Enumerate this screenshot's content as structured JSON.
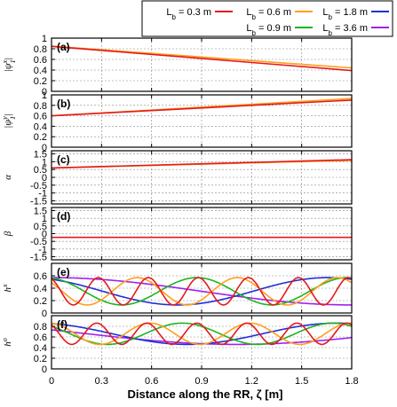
{
  "chart_data": {
    "type": "line",
    "xlabel": "Distance along the RR, ζ [m]",
    "xlim": [
      0,
      1.8
    ],
    "xticks": [
      "0",
      "0.3",
      "0.6",
      "0.9",
      "1.2",
      "1.5",
      "1.8"
    ],
    "legend": {
      "placement": "top",
      "entries": [
        {
          "label": "L_b = 0.3 m",
          "color": "#e41a1c"
        },
        {
          "label": "L_b = 0.6 m",
          "color": "#ff9f1c"
        },
        {
          "label": "L_b = 1.8 m",
          "color": "#1f2fd6"
        },
        {
          "label": "L_b = 0.9 m",
          "color": "#1fb31f"
        },
        {
          "label": "L_b = 3.6 m",
          "color": "#a020f0"
        }
      ]
    },
    "panels": [
      {
        "id": "a",
        "label": "(a)",
        "ylabel": "|ψ_1^x|",
        "ylim": [
          0,
          1
        ],
        "yticks": [
          "0",
          "0.2",
          "0.4",
          "0.6",
          "0.8",
          "1"
        ],
        "series": [
          {
            "color": "#ff9f1c",
            "x": [
              0,
              1.8
            ],
            "y": [
              0.85,
              0.44
            ]
          },
          {
            "color": "#e41a1c",
            "x": [
              0,
              1.8
            ],
            "y": [
              0.845,
              0.39
            ]
          }
        ]
      },
      {
        "id": "b",
        "label": "(b)",
        "ylabel": "|ψ_1^y|",
        "ylim": [
          0,
          1
        ],
        "yticks": [
          "0",
          "0.2",
          "0.4",
          "0.6",
          "0.8",
          "1"
        ],
        "series": [
          {
            "color": "#ff9f1c",
            "x": [
              0,
              1.8
            ],
            "y": [
              0.6,
              0.93
            ]
          },
          {
            "color": "#e41a1c",
            "x": [
              0,
              1.8
            ],
            "y": [
              0.6,
              0.9
            ]
          }
        ]
      },
      {
        "id": "c",
        "label": "(c)",
        "ylabel": "α",
        "ylim": [
          -1.7,
          1.7
        ],
        "yticks": [
          "-1.5",
          "-1",
          "-0.5",
          "0",
          "0.5",
          "1",
          "1.5"
        ],
        "series": [
          {
            "color": "#ff9f1c",
            "x": [
              0,
              1.8
            ],
            "y": [
              0.6,
              1.08
            ]
          },
          {
            "color": "#e41a1c",
            "x": [
              0,
              1.8
            ],
            "y": [
              0.6,
              1.13
            ]
          }
        ]
      },
      {
        "id": "d",
        "label": "(d)",
        "ylabel": "β",
        "ylim": [
          -1.7,
          1.7
        ],
        "yticks": [
          "-1.5",
          "-1",
          "-0.5",
          "0",
          "0.5",
          "1",
          "1.5"
        ],
        "series": [
          {
            "color": "#e41a1c",
            "x": [
              0,
              1.8
            ],
            "y": [
              -0.24,
              -0.24
            ]
          }
        ]
      },
      {
        "id": "e",
        "label": "(e)",
        "ylabel": "h^x",
        "ylim": [
          0,
          0.8
        ],
        "yticks": [
          "0",
          "0.2",
          "0.4",
          "0.6"
        ],
        "osc": {
          "center": 0.35,
          "amplitude": 0.22
        },
        "series": [
          {
            "color": "#a020f0",
            "period": 3.6,
            "phase": 0.0
          },
          {
            "color": "#1f2fd6",
            "period": 1.8,
            "phase": 0.5
          },
          {
            "color": "#1fb31f",
            "period": 0.9,
            "phase": 0.2
          },
          {
            "color": "#ff9f1c",
            "period": 0.6,
            "phase": 0.9
          },
          {
            "color": "#e41a1c",
            "period": 0.3,
            "phase": 0.4
          }
        ]
      },
      {
        "id": "f",
        "label": "(f)",
        "ylabel": "h^o",
        "ylim": [
          0,
          1
        ],
        "yticks": [
          "0",
          "0.2",
          "0.4",
          "0.6",
          "0.8"
        ],
        "osc": {
          "center": 0.66,
          "amplitude": 0.2
        },
        "series": [
          {
            "color": "#a020f0",
            "period": 3.6,
            "phase": 1.2
          },
          {
            "color": "#1f2fd6",
            "period": 1.8,
            "phase": 0.3
          },
          {
            "color": "#1fb31f",
            "period": 0.9,
            "phase": 0.8
          },
          {
            "color": "#ff9f1c",
            "period": 0.6,
            "phase": 0.1
          },
          {
            "color": "#e41a1c",
            "period": 0.3,
            "phase": 0.6
          }
        ]
      }
    ]
  }
}
